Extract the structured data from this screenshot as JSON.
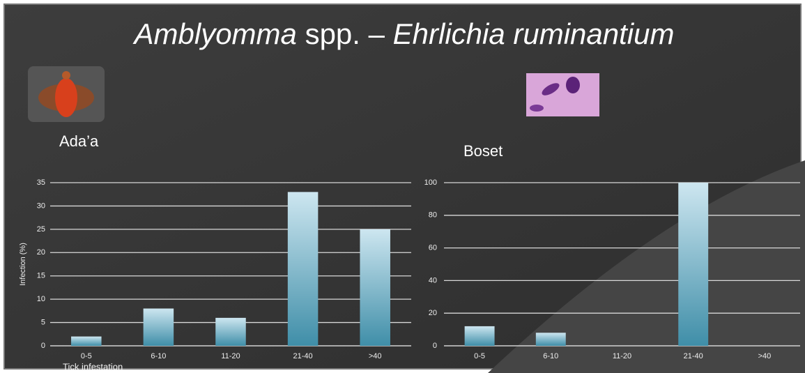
{
  "title": [
    "Amblyomma",
    "spp. –",
    "Ehrlichia ruminantium"
  ],
  "chart_data": [
    {
      "type": "bar",
      "title": "Ada’a",
      "y_label": "Infection (%)",
      "x_label": "Tick infestation",
      "categories": [
        "0-5",
        "6-10",
        "11-20",
        "21-40",
        ">40"
      ],
      "values": [
        2,
        8,
        6,
        33,
        25
      ],
      "color": "#3f8ea8",
      "ylim": [
        0,
        35
      ],
      "yticks": [
        0,
        5,
        10,
        15,
        20,
        25,
        30,
        35
      ],
      "grid": true
    },
    {
      "type": "bar",
      "title": "Boset",
      "categories": [
        "0-5",
        "6-10",
        "11-20",
        "21-40",
        ">40"
      ],
      "values": [
        12,
        8,
        0,
        100,
        0
      ],
      "color": "#3f8ea8",
      "ylim": [
        0,
        100
      ],
      "yticks": [
        0,
        20,
        40,
        60,
        80,
        100
      ],
      "grid": true
    }
  ]
}
